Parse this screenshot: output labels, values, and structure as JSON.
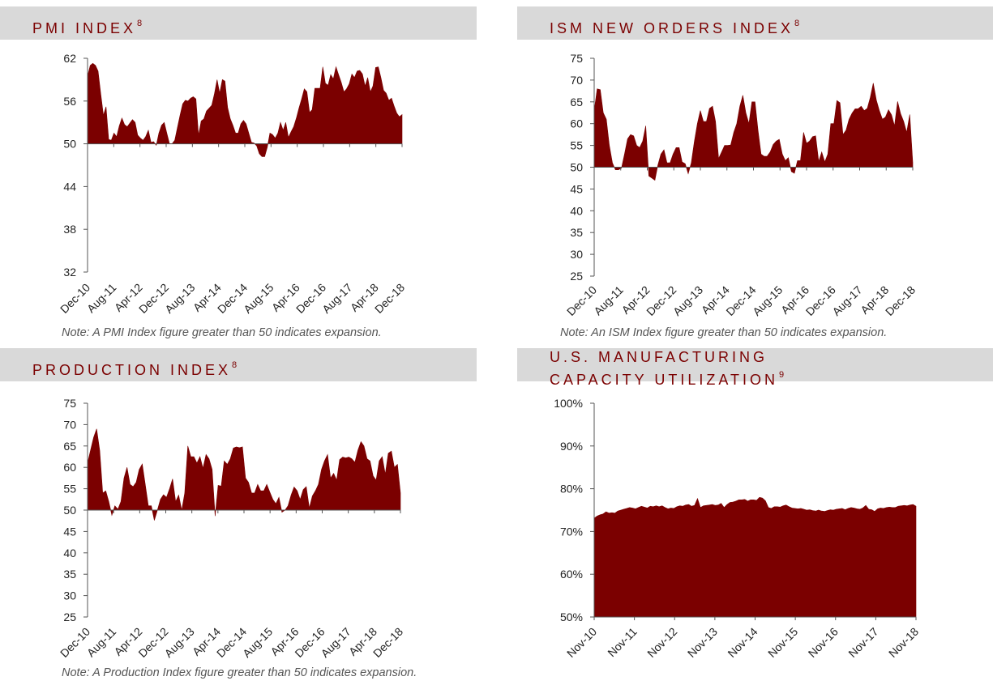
{
  "colors": {
    "fill": "#7b0000",
    "header_bg": "#d9d9d9",
    "header_text": "#7b0000",
    "axis": "#555555"
  },
  "panels": {
    "pmi": {
      "title": "PMI INDEX",
      "sup": "8",
      "note": "Note: A PMI Index figure greater than 50 indicates expansion."
    },
    "ism": {
      "title": "ISM NEW ORDERS INDEX",
      "sup": "8",
      "note": "Note: An ISM Index figure greater than 50 indicates expansion."
    },
    "prod": {
      "title": "PRODUCTION INDEX",
      "sup": "8",
      "note": "Note: A Production Index figure greater than 50 indicates expansion."
    },
    "cap": {
      "title_line1": "U.S. MANUFACTURING",
      "title_line2": "CAPACITY UTILIZATION",
      "sup": "9"
    }
  },
  "chart_data": [
    {
      "id": "pmi",
      "type": "area",
      "baseline": 50,
      "ylim": [
        32,
        62
      ],
      "yticks": [
        32,
        38,
        44,
        50,
        56,
        62
      ],
      "ytick_labels": [
        "32",
        "38",
        "44",
        "50",
        "56",
        "62"
      ],
      "xlabels": [
        "Dec-10",
        "Aug-11",
        "Apr-12",
        "Dec-12",
        "Aug-13",
        "Apr-14",
        "Dec-14",
        "Aug-15",
        "Apr-16",
        "Dec-16",
        "Aug-17",
        "Apr-18",
        "Dec-18"
      ],
      "values": [
        59.5,
        61,
        61.3,
        61,
        60.2,
        57,
        54,
        55.2,
        50.6,
        50.5,
        51.5,
        51,
        52.5,
        53.6,
        52.7,
        52.4,
        52.9,
        53.4,
        53,
        51.2,
        50.8,
        50.5,
        51,
        51.9,
        50.2,
        50.3,
        49.8,
        51.5,
        52.6,
        53,
        51.5,
        50,
        50,
        50.5,
        52.3,
        54,
        55.6,
        56.1,
        56,
        56.4,
        56.6,
        56.3,
        51.2,
        53.2,
        53.5,
        54.6,
        55,
        55.4,
        57,
        59,
        57.1,
        59,
        58.8,
        55.1,
        53.5,
        52.6,
        51.5,
        51.5,
        52.8,
        53.3,
        52.8,
        51.5,
        50.2,
        50.1,
        49.7,
        48.6,
        48.2,
        48.2,
        49.5,
        51.5,
        51.3,
        50.8,
        51.5,
        53,
        51.9,
        53,
        50.9,
        51.7,
        52.4,
        53.6,
        55,
        56.3,
        57.7,
        57.3,
        54.4,
        54.8,
        57.8,
        57.8,
        57.8,
        60.8,
        58.5,
        58.2,
        59.7,
        59.1,
        60.8,
        59.7,
        58.6,
        57.3,
        57.7,
        58.4,
        59.8,
        59.3,
        60.2,
        60.3,
        59.8,
        58.1,
        59.3,
        57.3,
        58.1,
        60.7,
        60.8,
        59.3,
        57.5,
        57.1,
        56.1,
        56.4,
        55.3,
        54.3,
        53.8,
        54.1
      ]
    },
    {
      "id": "ism",
      "type": "area",
      "baseline": 50,
      "ylim": [
        25,
        75
      ],
      "yticks": [
        25,
        30,
        35,
        40,
        45,
        50,
        55,
        60,
        65,
        70,
        75
      ],
      "ytick_labels": [
        "25",
        "30",
        "35",
        "40",
        "45",
        "50",
        "55",
        "60",
        "65",
        "70",
        "75"
      ],
      "xlabels": [
        "Dec-10",
        "Aug-11",
        "Apr-12",
        "Dec-12",
        "Aug-13",
        "Apr-14",
        "Dec-14",
        "Aug-15",
        "Apr-16",
        "Dec-16",
        "Aug-17",
        "Apr-18",
        "Dec-18"
      ],
      "values": [
        63,
        68,
        67.8,
        62.5,
        61,
        55,
        51,
        49.4,
        49.4,
        49.8,
        53,
        56.5,
        57.5,
        57.2,
        55,
        54.5,
        56,
        59.5,
        48,
        47.5,
        47,
        50.5,
        53,
        54,
        51,
        51,
        53,
        54.5,
        54.5,
        51.2,
        50.8,
        48.5,
        51,
        55.8,
        60,
        63,
        60.5,
        60.5,
        63.5,
        64,
        60.5,
        52,
        53.5,
        55,
        55,
        55.1,
        58,
        60,
        64,
        66.5,
        62.5,
        60,
        65,
        65,
        58.5,
        53,
        52.5,
        52.5,
        53.5,
        55.2,
        56,
        56.4,
        53,
        51.5,
        52.2,
        49,
        48.6,
        51.5,
        51.5,
        58,
        55.5,
        56,
        57,
        57.2,
        51.3,
        53.5,
        51.2,
        53,
        60,
        60,
        65.3,
        64.8,
        57.5,
        58.5,
        61,
        62.4,
        63.4,
        63.4,
        64,
        63,
        63.5,
        66,
        69.3,
        65.4,
        63,
        61,
        61.5,
        63.2,
        62,
        59.5,
        65.1,
        62.3,
        60.5,
        58,
        62.1,
        51.1
      ]
    },
    {
      "id": "prod",
      "type": "area",
      "baseline": 50,
      "ylim": [
        25,
        75
      ],
      "yticks": [
        25,
        30,
        35,
        40,
        45,
        50,
        55,
        60,
        65,
        70,
        75
      ],
      "ytick_labels": [
        "25",
        "30",
        "35",
        "40",
        "45",
        "50",
        "55",
        "60",
        "65",
        "70",
        "75"
      ],
      "xlabels": [
        "Dec-10",
        "Aug-11",
        "Apr-12",
        "Dec-12",
        "Aug-13",
        "Apr-14",
        "Dec-14",
        "Aug-15",
        "Apr-16",
        "Dec-16",
        "Aug-17",
        "Apr-18",
        "Dec-18"
      ],
      "values": [
        61,
        64,
        67,
        69,
        64,
        54,
        54.5,
        52,
        48.8,
        51,
        50.2,
        52,
        57.5,
        60,
        56,
        55.5,
        56.5,
        59.5,
        60.8,
        56,
        51,
        51,
        47.6,
        50,
        52.5,
        53.6,
        53,
        55,
        57.3,
        52,
        53.5,
        50,
        54,
        65,
        62.5,
        62.5,
        61,
        62.5,
        59.8,
        63,
        62,
        59.5,
        48.6,
        55.8,
        55.6,
        61.5,
        60.7,
        62,
        64.5,
        64.8,
        64.6,
        64.8,
        57.5,
        56.5,
        54,
        54,
        56,
        54.5,
        54.5,
        56,
        54.2,
        52.5,
        51.5,
        53,
        49.5,
        50,
        51,
        53.5,
        55.4,
        54.5,
        52.5,
        54.8,
        55.5,
        50.5,
        53.3,
        54.5,
        56,
        59.5,
        61.5,
        63,
        57.5,
        58.6,
        57,
        61.8,
        62.4,
        62.2,
        62.4,
        62,
        61.2,
        64,
        66,
        65,
        62,
        61.5,
        58,
        57,
        61.5,
        62.5,
        58.4,
        63.3,
        63.8,
        60,
        60.7,
        54
      ]
    },
    {
      "id": "cap",
      "type": "area",
      "baseline": 50,
      "ylim": [
        50,
        100
      ],
      "yticks": [
        50,
        60,
        70,
        80,
        90,
        100
      ],
      "ytick_labels": [
        "50%",
        "60%",
        "70%",
        "80%",
        "90%",
        "100%"
      ],
      "xlabels": [
        "Nov-10",
        "Nov-11",
        "Nov-12",
        "Nov-13",
        "Nov-14",
        "Nov-15",
        "Nov-16",
        "Nov-17",
        "Nov-18"
      ],
      "values": [
        73.1,
        73.6,
        73.9,
        74.1,
        74.6,
        74.3,
        74.4,
        74.3,
        74.8,
        75,
        75.2,
        75.4,
        75.6,
        75.5,
        75.3,
        75.6,
        75.9,
        75.7,
        75.5,
        75.9,
        75.8,
        76,
        75.8,
        76,
        75.6,
        75.3,
        75.5,
        75.4,
        75.8,
        76,
        75.9,
        76.2,
        76.3,
        75.9,
        76.1,
        77.7,
        75.6,
        76,
        76.1,
        76.2,
        76.3,
        76.1,
        76.2,
        76.6,
        75.6,
        76.3,
        76.8,
        76.9,
        77.1,
        77.4,
        77.4,
        77.5,
        77.1,
        77.4,
        77.4,
        77.3,
        78,
        77.8,
        77.2,
        75.6,
        75.4,
        75.8,
        75.8,
        75.7,
        76,
        76.2,
        75.8,
        75.5,
        75.4,
        75.3,
        75.4,
        75.2,
        75,
        75.1,
        74.9,
        74.8,
        75,
        74.8,
        74.7,
        74.9,
        75.1,
        75,
        75.2,
        75.3,
        75.4,
        75.1,
        75.4,
        75.6,
        75.5,
        75.3,
        75.2,
        75.5,
        76.1,
        75.2,
        75.1,
        74.7,
        75.3,
        75.5,
        75.4,
        75.6,
        75.7,
        75.6,
        75.6,
        75.9,
        76,
        76.1,
        76,
        76.2,
        76.3,
        75.9
      ]
    }
  ]
}
